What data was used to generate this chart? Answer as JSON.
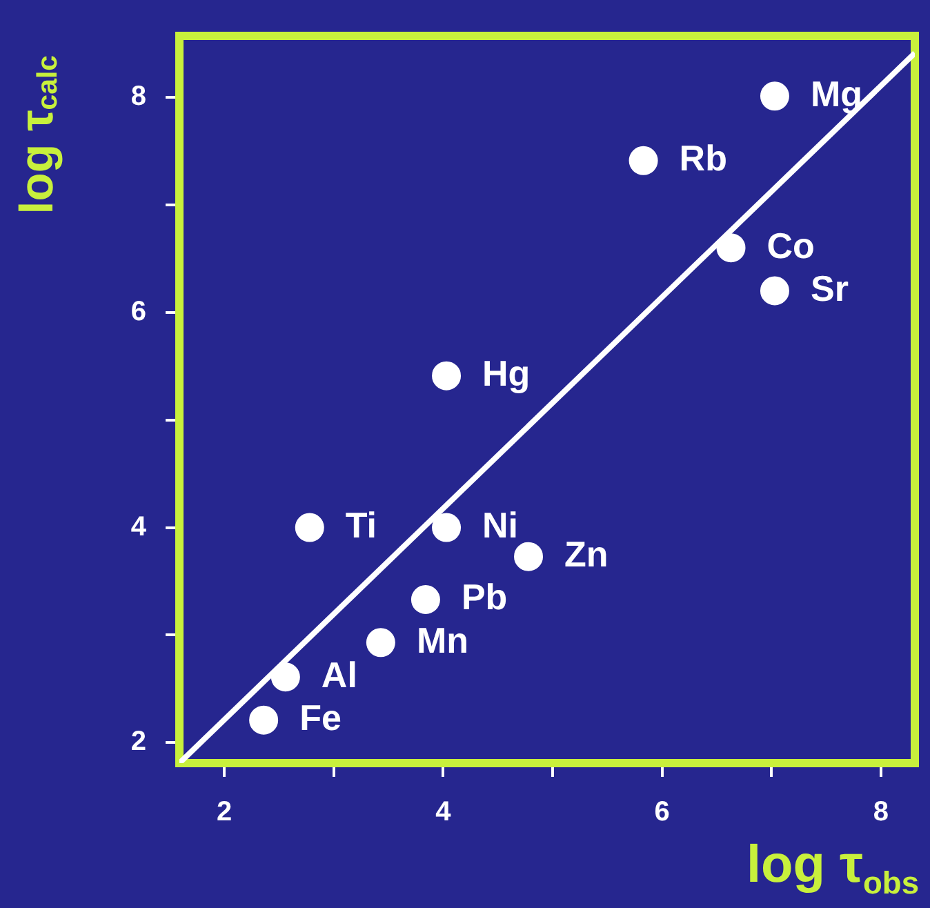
{
  "chart_data": {
    "type": "scatter",
    "xlabel": "log τ$_{obs}$",
    "ylabel": "log τ$_{calc}$",
    "xlim": [
      1.59,
      8.31
    ],
    "ylim": [
      1.81,
      8.57
    ],
    "xticks": [
      2,
      {
        "value": 3,
        "label": null
      },
      4,
      {
        "value": 5,
        "label": null
      },
      6,
      {
        "value": 7,
        "label": null
      },
      8
    ],
    "yticks": [
      2,
      {
        "value": 3,
        "label": null
      },
      4,
      {
        "value": 5,
        "label": null
      },
      6,
      {
        "value": 7,
        "label": null
      },
      8
    ],
    "grid": false,
    "legend": false,
    "marker": "circle",
    "series": [
      {
        "color": "#ffffff",
        "x": [
          7.03,
          5.83,
          6.63,
          7.03,
          4.03,
          2.78,
          4.03,
          4.78,
          3.84,
          3.43,
          2.56,
          2.36
        ],
        "values": [
          8.01,
          7.41,
          6.6,
          6.2,
          5.41,
          4.0,
          4.0,
          3.73,
          3.33,
          2.93,
          2.61,
          2.21
        ]
      },
      {
        "type": "line",
        "color": "#ffffff",
        "marker": "none",
        "x": [
          1.59,
          8.31
        ],
        "values": [
          1.81,
          8.41
        ]
      }
    ],
    "annotations": [
      {
        "text": "Mg",
        "x": 7.03,
        "y": 8.01
      },
      {
        "text": "Rb",
        "x": 5.83,
        "y": 7.41
      },
      {
        "text": "Co",
        "x": 6.63,
        "y": 6.6
      },
      {
        "text": "Sr",
        "x": 7.03,
        "y": 6.2
      },
      {
        "text": "Hg",
        "x": 4.03,
        "y": 5.41
      },
      {
        "text": "Ti",
        "x": 2.78,
        "y": 4.0
      },
      {
        "text": "Ni",
        "x": 4.03,
        "y": 4.0
      },
      {
        "text": "Zn",
        "x": 4.78,
        "y": 3.73
      },
      {
        "text": "Pb",
        "x": 3.84,
        "y": 3.33
      },
      {
        "text": "Mn",
        "x": 3.43,
        "y": 2.93
      },
      {
        "text": "Al",
        "x": 2.56,
        "y": 2.61
      },
      {
        "text": "Fe",
        "x": 2.36,
        "y": 2.21
      }
    ]
  }
}
